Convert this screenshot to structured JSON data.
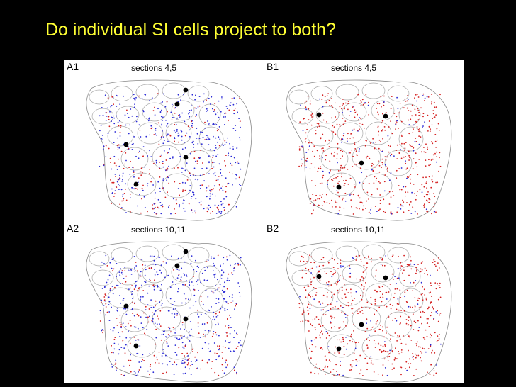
{
  "title": "Do individual SI cells project to both?",
  "panels": [
    {
      "label": "A1",
      "sections": "sections 4,5",
      "dominant": "blue"
    },
    {
      "label": "B1",
      "sections": "sections 4,5",
      "dominant": "red"
    },
    {
      "label": "A2",
      "sections": "sections 10,11",
      "dominant": "blue"
    },
    {
      "label": "B2",
      "sections": "sections 10,11",
      "dominant": "red"
    }
  ],
  "colors": {
    "blue": "#2b2bd6",
    "red": "#d42020",
    "outline": "#888888",
    "marker": "#000000",
    "title": "#ffff33"
  }
}
